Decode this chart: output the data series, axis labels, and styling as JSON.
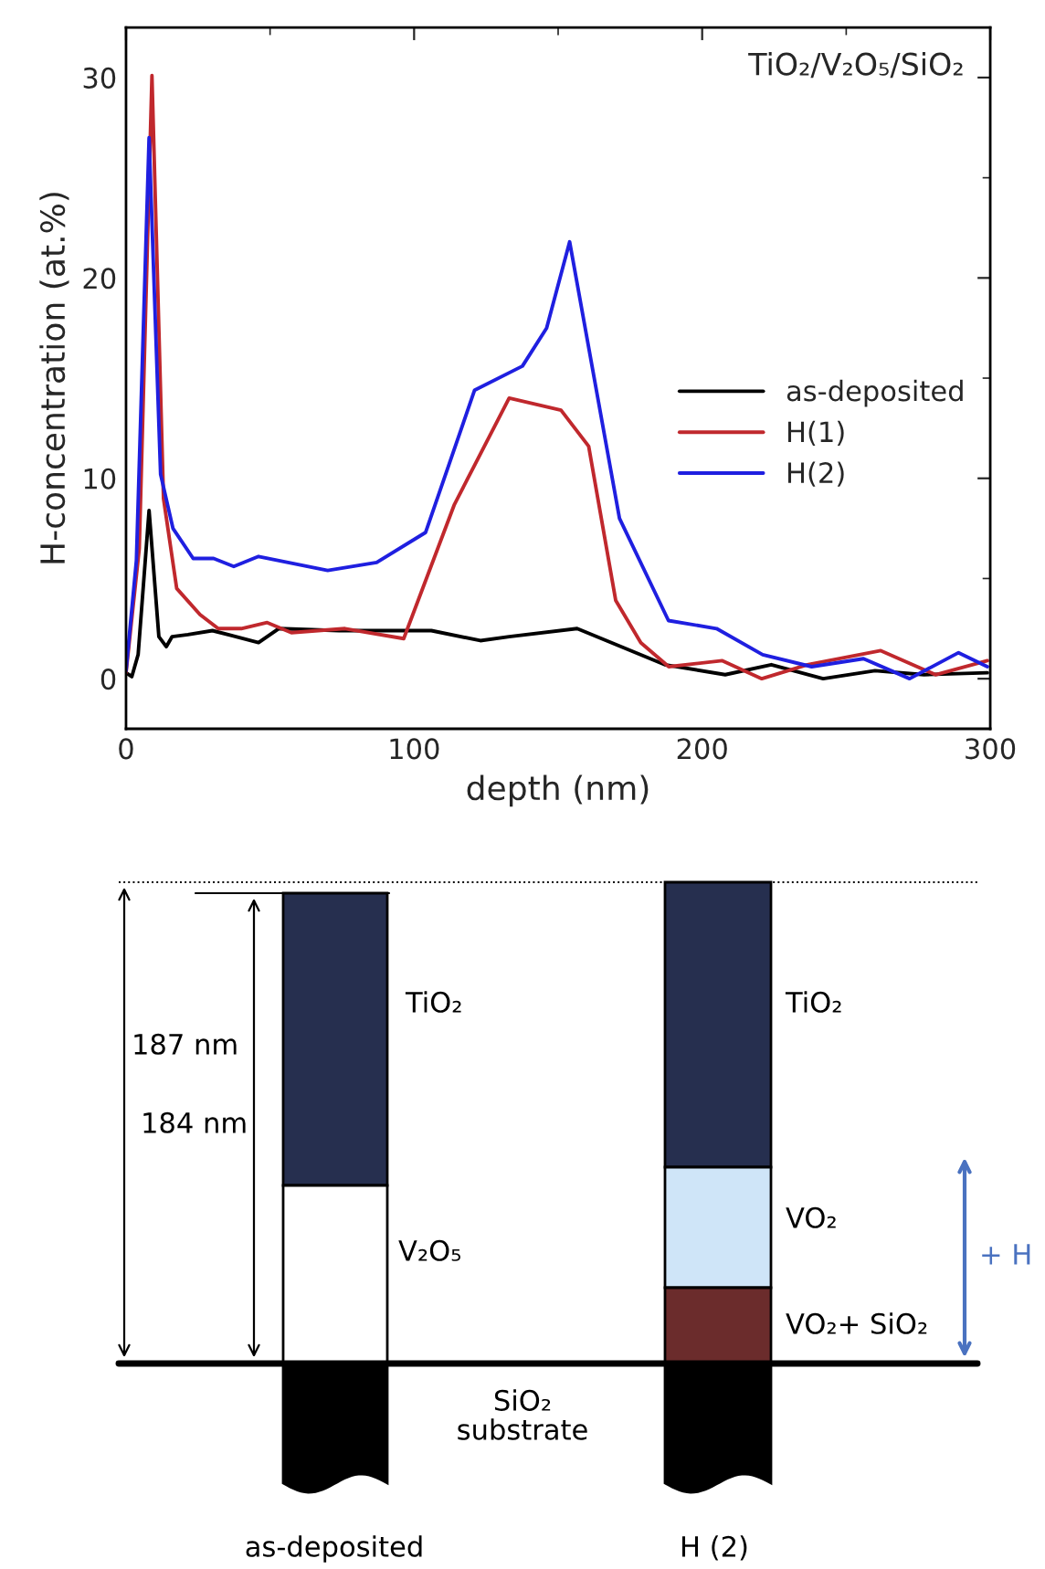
{
  "chart_data": [
    {
      "type": "line",
      "xlabel": "depth (nm)",
      "ylabel": "H-concentration (at.%)",
      "annotations": [
        "TiO₂/V₂O₅/SiO₂"
      ],
      "xlim": [
        0,
        300
      ],
      "xticks": [
        0,
        100,
        200,
        300
      ],
      "ylim": [
        -2.5,
        32.5
      ],
      "yticks": [
        0,
        10,
        20,
        30
      ],
      "legend": "center right",
      "grid": false,
      "series": [
        {
          "name": "as-deposited",
          "color": "#000000",
          "x": [
            0,
            2,
            4.2,
            8,
            11.4,
            14,
            16,
            21.5,
            30,
            46,
            53,
            74,
            106,
            123,
            133,
            156.6,
            187,
            208,
            224,
            242,
            260,
            277,
            299
          ],
          "values": [
            0.3,
            0.1,
            1.2,
            8.4,
            2.1,
            1.6,
            2.1,
            2.2,
            2.4,
            1.8,
            2.5,
            2.4,
            2.4,
            1.9,
            2.1,
            2.5,
            0.7,
            0.2,
            0.7,
            0.0,
            0.4,
            0.2,
            0.3
          ]
        },
        {
          "name": "H(1)",
          "color": "#c0282d",
          "x": [
            0,
            4.6,
            9,
            13,
            17.6,
            25.7,
            32,
            40,
            49,
            57.4,
            76,
            96.4,
            114,
            133,
            151,
            160.6,
            170,
            178.7,
            188.4,
            207,
            220.7,
            236.5,
            262,
            281,
            299
          ],
          "values": [
            0.3,
            6.5,
            30.1,
            9,
            4.5,
            3.2,
            2.5,
            2.5,
            2.8,
            2.3,
            2.5,
            2.0,
            8.7,
            14.0,
            13.4,
            11.6,
            3.9,
            1.8,
            0.6,
            0.9,
            0.0,
            0.7,
            1.4,
            0.2,
            0.9
          ]
        },
        {
          "name": "H(2)",
          "color": "#1f1fe0",
          "x": [
            0,
            3.6,
            8,
            12,
            16.3,
            23.3,
            30.4,
            37.4,
            46,
            70,
            87,
            104,
            121,
            137.6,
            146,
            154,
            171.3,
            188.3,
            205,
            221,
            238,
            256,
            272,
            289,
            299
          ],
          "values": [
            0.4,
            5.9,
            27,
            10.2,
            7.5,
            6,
            6,
            5.6,
            6.1,
            5.4,
            5.8,
            7.3,
            14.4,
            15.6,
            17.5,
            21.8,
            8,
            2.9,
            2.5,
            1.2,
            0.6,
            1.0,
            0.0,
            1.3,
            0.6
          ]
        }
      ]
    },
    {
      "type": "other",
      "annotations": [
        "187 nm",
        "184 nm",
        "TiO₂",
        "V₂O₅",
        "TiO₂",
        "VO₂",
        "VO₂+ SiO₂",
        "SiO₂\nsubstrate",
        "+ H",
        "as-deposited",
        "H (2)"
      ]
    }
  ]
}
